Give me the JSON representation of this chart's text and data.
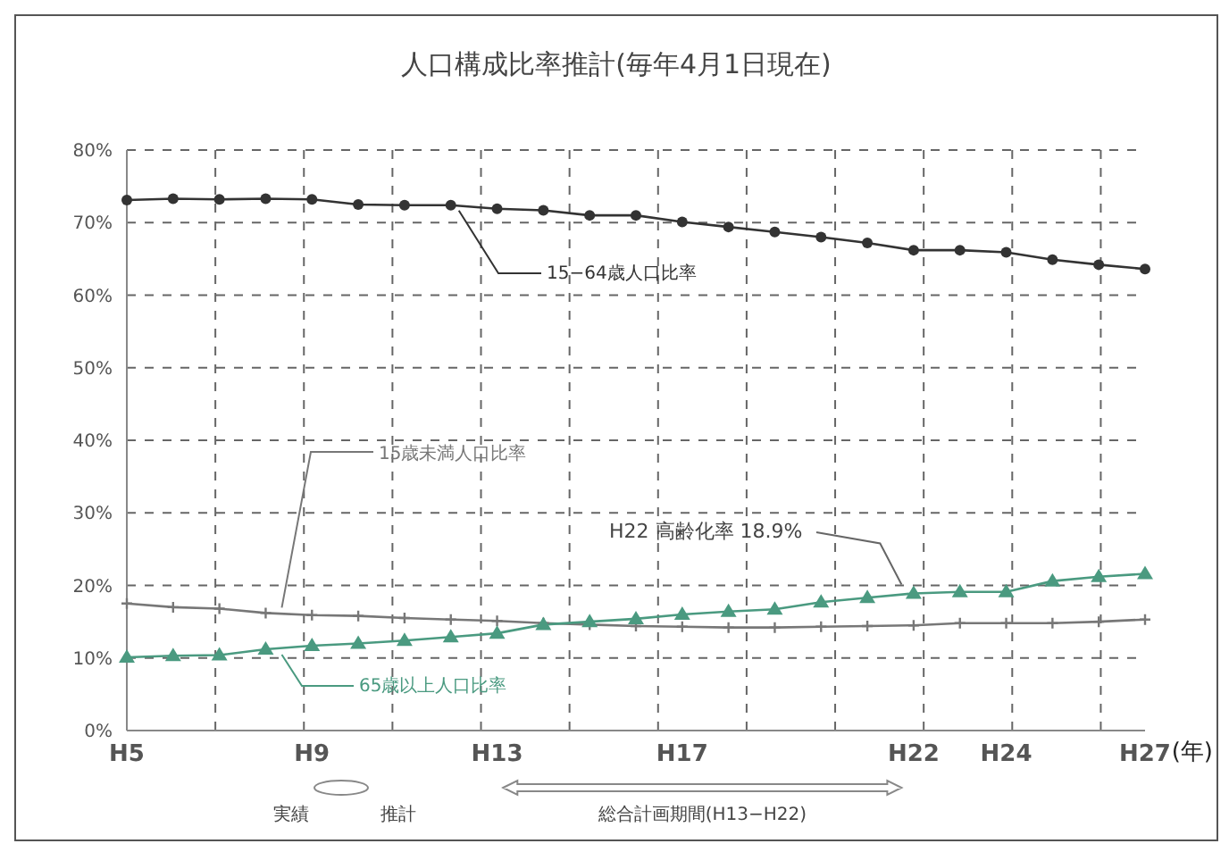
{
  "chart_data": {
    "type": "line",
    "title": "人口構成比率推計(毎年4月1日現在)",
    "xlabel": "(年)",
    "categories": [
      "H5",
      null,
      null,
      null,
      "H9",
      null,
      null,
      null,
      "H13",
      null,
      null,
      null,
      "H17",
      null,
      null,
      null,
      null,
      "H22",
      null,
      "H24",
      null,
      null,
      "H27"
    ],
    "series": [
      {
        "name": "15−64歳人口比率",
        "color": "#333333",
        "marker": "circle",
        "values": [
          73.1,
          73.3,
          73.2,
          73.3,
          73.2,
          72.5,
          72.4,
          72.4,
          71.9,
          71.7,
          71.0,
          71.0,
          70.1,
          69.4,
          68.7,
          68.0,
          67.2,
          66.2,
          66.2,
          65.9,
          64.9,
          64.2,
          63.6
        ]
      },
      {
        "name": "15歳未満人口比率",
        "color": "#777777",
        "marker": "cross",
        "values": [
          17.5,
          17.0,
          16.8,
          16.2,
          15.9,
          15.8,
          15.5,
          15.3,
          15.1,
          14.8,
          14.6,
          14.4,
          14.3,
          14.2,
          14.2,
          14.3,
          14.4,
          14.5,
          14.8,
          14.8,
          14.8,
          15.0,
          15.3
        ]
      },
      {
        "name": "65歳以上人口比率",
        "color": "#4a9a80",
        "marker": "triangle",
        "values": [
          10.1,
          10.3,
          10.4,
          11.2,
          11.7,
          12.0,
          12.4,
          12.9,
          13.4,
          14.6,
          15.0,
          15.4,
          16.0,
          16.4,
          16.7,
          17.7,
          18.3,
          18.9,
          19.1,
          19.1,
          20.6,
          21.2,
          21.6
        ]
      }
    ],
    "ylim": [
      0,
      80
    ],
    "yticks": [
      {
        "value": 0,
        "label": "0%"
      },
      {
        "value": 10,
        "label": "10%"
      },
      {
        "value": 20,
        "label": "20%"
      },
      {
        "value": 30,
        "label": "30%"
      },
      {
        "value": 40,
        "label": "40%"
      },
      {
        "value": 50,
        "label": "50%"
      },
      {
        "value": 60,
        "label": "60%"
      },
      {
        "value": 70,
        "label": "70%"
      },
      {
        "value": 80,
        "label": "80%"
      }
    ],
    "grid": true,
    "annotations": [
      {
        "text": "H22  高齢化率  18.9%",
        "x": "H22",
        "y": 18.9
      },
      "実績",
      "推計",
      "総合計画期間(H13−H22)"
    ]
  }
}
